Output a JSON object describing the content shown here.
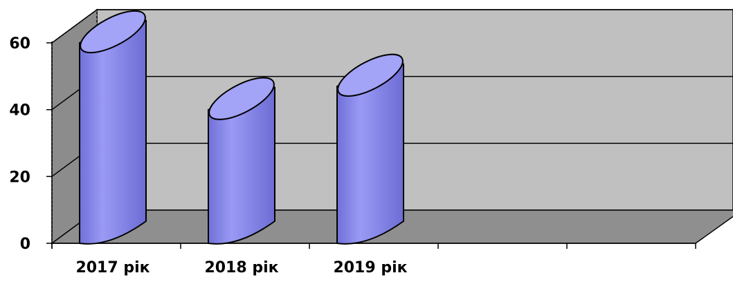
{
  "chart_data": {
    "type": "bar",
    "style": "3d-cylinder",
    "categories": [
      "2017 рік",
      "2018 рік",
      "2019 рік"
    ],
    "values": [
      60,
      40,
      47
    ],
    "yticks": [
      0,
      20,
      40,
      60
    ],
    "ylim": [
      0,
      60
    ],
    "grid": true,
    "legend": "none",
    "slots": 5,
    "colors": {
      "bar_body": "#8a8aee",
      "bar_top": "#a3a3f7",
      "wall": "#c0c0c0",
      "side_wall": "#8c8c8c",
      "floor": "#8f8f8f"
    }
  }
}
